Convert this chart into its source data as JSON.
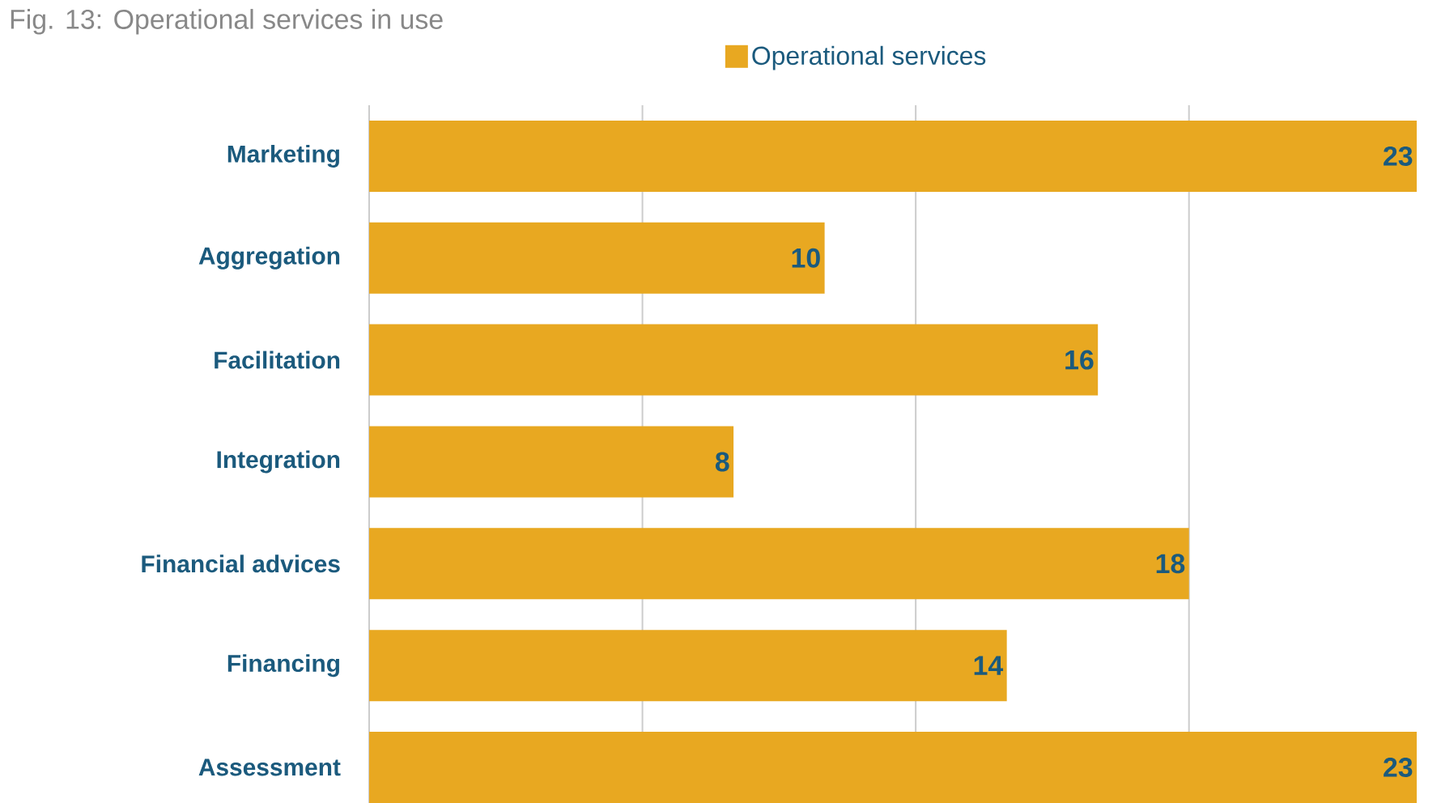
{
  "chart_data": {
    "type": "bar",
    "orientation": "horizontal",
    "title": "Fig. 13: Operational services in use",
    "categories": [
      "Marketing",
      "Aggregation",
      "Facilitation",
      "Integration",
      "Financial advices",
      "Financing",
      "Assessment"
    ],
    "series": [
      {
        "name": "Operational services",
        "color": "#e8a821",
        "values": [
          23,
          10,
          16,
          8,
          18,
          14,
          23
        ]
      }
    ],
    "xlim": [
      0,
      23
    ],
    "xticks": [
      {
        "value": 0,
        "label": null
      },
      {
        "value": 6,
        "label": null
      },
      {
        "value": 12,
        "label": null
      },
      {
        "value": 18,
        "label": null
      }
    ],
    "tick_labels": "y",
    "grid": "x",
    "legend": "top",
    "data_labels": true
  }
}
